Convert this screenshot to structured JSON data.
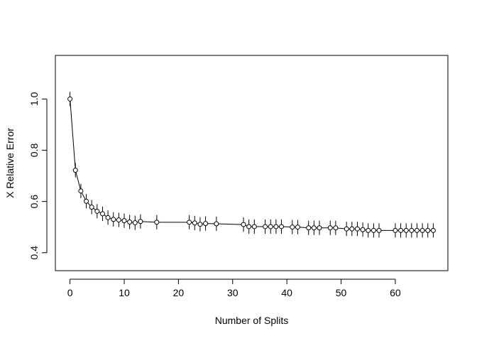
{
  "chart_data": {
    "type": "line",
    "title": "",
    "xlabel": "Number of Splits",
    "ylabel": "X Relative Error",
    "xlim": [
      -2.7,
      69.7
    ],
    "ylim": [
      0.33,
      1.17
    ],
    "x_ticks": [
      0,
      10,
      20,
      30,
      40,
      50,
      60
    ],
    "x_tick_labels": [
      "0",
      "10",
      "20",
      "30",
      "40",
      "50",
      "60"
    ],
    "y_ticks": [
      0.4,
      0.6,
      0.8,
      1.0
    ],
    "y_tick_labels": [
      "0.4",
      "0.6",
      "0.8",
      "1.0"
    ],
    "grid": false,
    "legend": "none",
    "marker": "open-circle",
    "error_bars": true,
    "series": [
      {
        "x": [
          0,
          1,
          2,
          3,
          4,
          5,
          6,
          7,
          8,
          9,
          10,
          11,
          12,
          13,
          16,
          22,
          23,
          24,
          25,
          27,
          32,
          33,
          34,
          36,
          37,
          38,
          39,
          41,
          42,
          44,
          45,
          46,
          48,
          49,
          51,
          52,
          53,
          54,
          55,
          56,
          57,
          60,
          61,
          62,
          63,
          64,
          65,
          66,
          67
        ],
        "y": [
          1.0,
          0.722,
          0.641,
          0.601,
          0.578,
          0.562,
          0.552,
          0.537,
          0.53,
          0.528,
          0.525,
          0.52,
          0.517,
          0.522,
          0.519,
          0.519,
          0.516,
          0.511,
          0.514,
          0.513,
          0.51,
          0.502,
          0.502,
          0.502,
          0.502,
          0.502,
          0.502,
          0.5,
          0.5,
          0.497,
          0.497,
          0.497,
          0.497,
          0.497,
          0.493,
          0.493,
          0.493,
          0.49,
          0.487,
          0.487,
          0.487,
          0.487,
          0.487,
          0.487,
          0.487,
          0.487,
          0.487,
          0.487,
          0.487
        ],
        "err": [
          0.028,
          0.028,
          0.028,
          0.028,
          0.028,
          0.028,
          0.028,
          0.028,
          0.028,
          0.028,
          0.028,
          0.028,
          0.028,
          0.028,
          0.028,
          0.028,
          0.028,
          0.028,
          0.028,
          0.028,
          0.028,
          0.028,
          0.028,
          0.028,
          0.028,
          0.028,
          0.028,
          0.028,
          0.028,
          0.028,
          0.028,
          0.028,
          0.028,
          0.028,
          0.028,
          0.028,
          0.028,
          0.028,
          0.028,
          0.028,
          0.028,
          0.028,
          0.028,
          0.028,
          0.028,
          0.028,
          0.028,
          0.028,
          0.028
        ]
      }
    ]
  }
}
